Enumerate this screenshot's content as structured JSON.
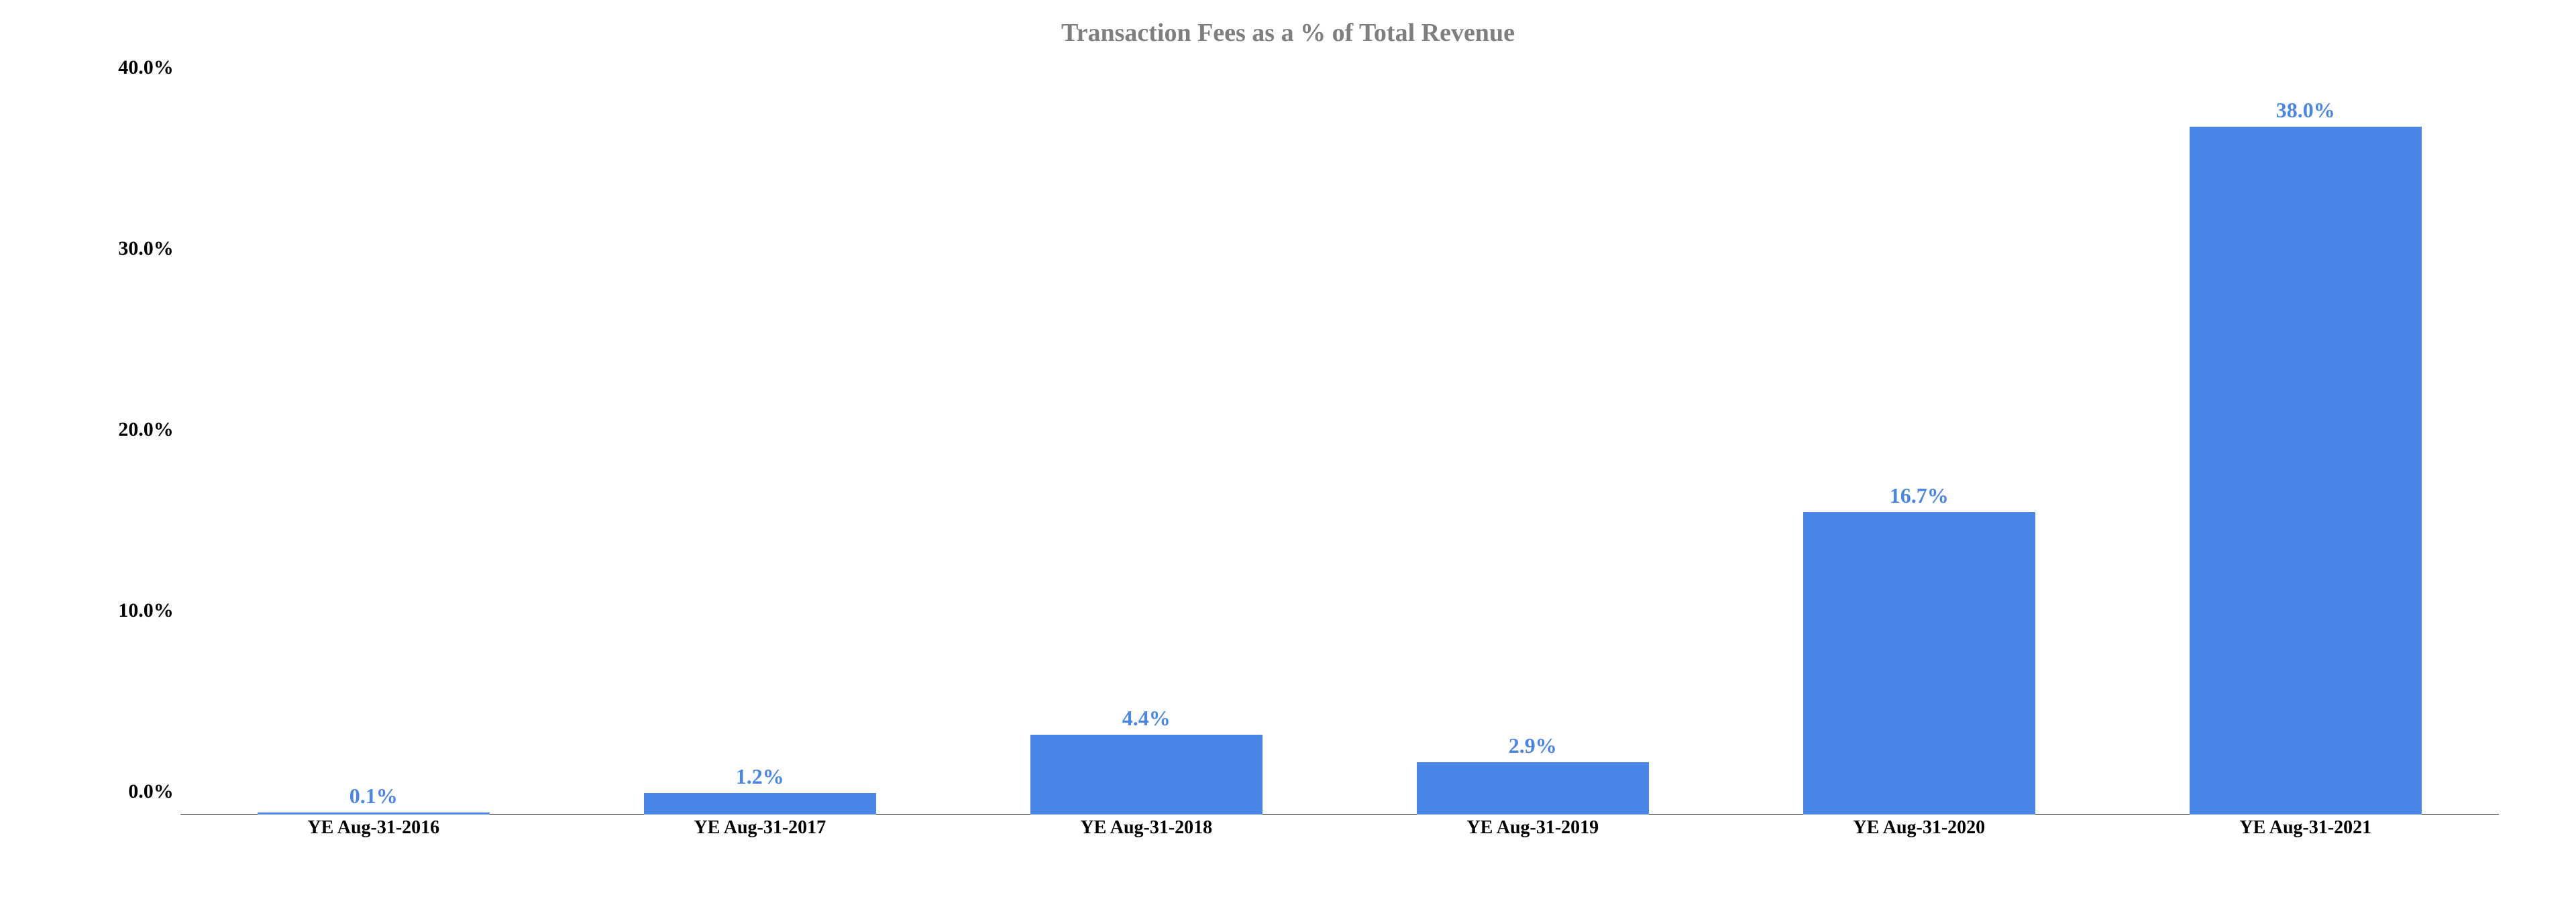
{
  "chart": {
    "type": "bar",
    "title": "Transaction Fees as a % of Total Revenue",
    "title_fontsize": 38,
    "title_color": "#7f7f7f",
    "categories": [
      "YE Aug-31-2016",
      "YE Aug-31-2017",
      "YE Aug-31-2018",
      "YE Aug-31-2019",
      "YE Aug-31-2020",
      "YE Aug-31-2021"
    ],
    "values": [
      0.1,
      1.2,
      4.4,
      2.9,
      16.7,
      38.0
    ],
    "value_labels": [
      "0.1%",
      "1.2%",
      "4.4%",
      "2.9%",
      "16.7%",
      "38.0%"
    ],
    "bar_color": "#4a86e8",
    "value_label_color": "#4a86e8",
    "value_label_outline_color": "#ffffff",
    "value_label_fontsize": 32,
    "x_label_fontsize": 28,
    "x_label_color": "#000000",
    "y_tick_fontsize": 30,
    "y_tick_color": "#000000",
    "ylim": [
      0,
      40
    ],
    "yticks": [
      0.0,
      10.0,
      20.0,
      30.0,
      40.0
    ],
    "ytick_labels": [
      "0.0%",
      "10.0%",
      "20.0%",
      "30.0%",
      "40.0%"
    ],
    "bar_width_pct": 60,
    "background_color": "transparent",
    "baseline_color": "#000000",
    "font_family": "Georgia, 'Times New Roman', serif"
  }
}
